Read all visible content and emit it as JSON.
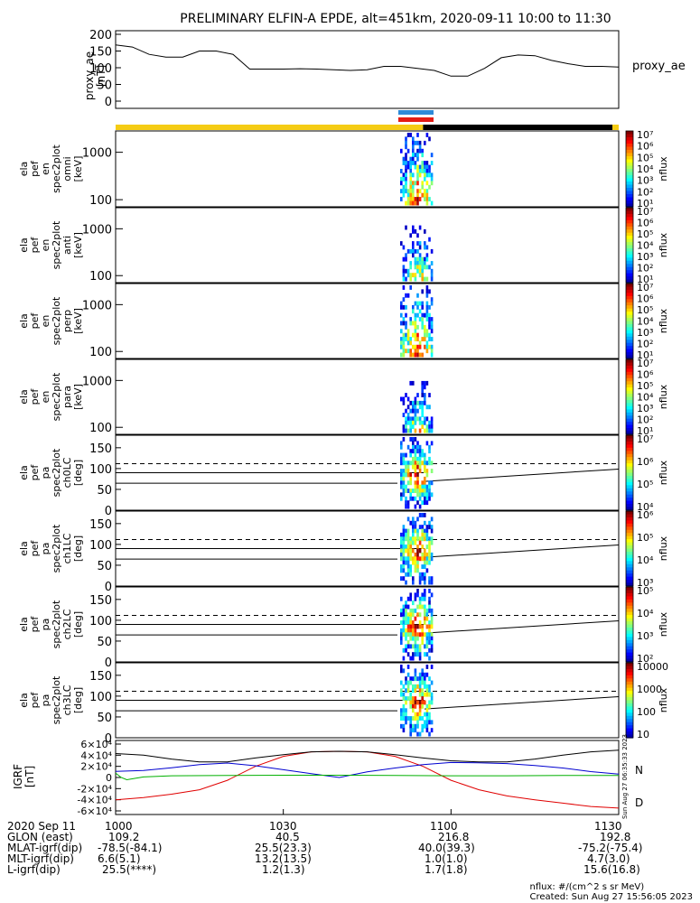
{
  "title": "PRELIMINARY ELFIN-A EPDE, alt=451km, 2020-09-11 10:00 to 11:30",
  "colors": {
    "science_bar": "#f5cc14",
    "night_bar": "#000000",
    "marker_blue": "#2e8ad8",
    "marker_red": "#e41b13",
    "trace_red": "#e00000",
    "trace_blue": "#0000d0",
    "trace_green": "#00b000",
    "trace_black": "#000000"
  },
  "x_axis": {
    "tick_labels": [
      "1000",
      "1030",
      "1100",
      "1130"
    ]
  },
  "chart_data": [
    {
      "type": "line",
      "panel": "proxy_ae",
      "ylabel": [
        "proxy_ae",
        "[nT]"
      ],
      "legend": "proxy_ae",
      "yticks": [
        "0",
        "50",
        "100",
        "150",
        "200"
      ],
      "ylim": [
        0,
        200
      ],
      "series": [
        {
          "x": [
            0,
            3,
            6,
            9,
            12,
            15,
            18,
            21,
            24,
            27,
            30,
            33,
            36,
            39,
            42,
            45,
            48,
            51,
            54,
            57,
            60,
            63,
            66,
            69,
            72,
            75,
            78,
            81,
            84,
            87,
            90
          ],
          "values": [
            168,
            162,
            140,
            132,
            132,
            150,
            150,
            140,
            96,
            96,
            96,
            97,
            96,
            94,
            92,
            94,
            104,
            104,
            98,
            92,
            75,
            75,
            98,
            130,
            138,
            136,
            122,
            112,
            104,
            104,
            102
          ]
        }
      ]
    },
    {
      "type": "heatmap",
      "panel": "omni",
      "ylabel": [
        "ela",
        "pef",
        "en",
        "spec2plot",
        "omni",
        "[keV]"
      ],
      "yticks": [
        "100",
        "1000"
      ],
      "y_scale": "log",
      "colorbar": {
        "label": "nflux",
        "ticks": [
          "10¹",
          "10²",
          "10³",
          "10⁴",
          "10⁵",
          "10⁶",
          "10⁷"
        ]
      }
    },
    {
      "type": "heatmap",
      "panel": "anti",
      "ylabel": [
        "ela",
        "pef",
        "en",
        "spec2plot",
        "anti",
        "[keV]"
      ],
      "yticks": [
        "100",
        "1000"
      ],
      "y_scale": "log",
      "colorbar": {
        "label": "nflux",
        "ticks": [
          "10¹",
          "10²",
          "10³",
          "10⁴",
          "10⁵",
          "10⁶",
          "10⁷"
        ]
      }
    },
    {
      "type": "heatmap",
      "panel": "perp",
      "ylabel": [
        "ela",
        "pef",
        "en",
        "spec2plot",
        "perp",
        "[keV]"
      ],
      "yticks": [
        "100",
        "1000"
      ],
      "y_scale": "log",
      "colorbar": {
        "label": "nflux",
        "ticks": [
          "10¹",
          "10²",
          "10³",
          "10⁴",
          "10⁵",
          "10⁶",
          "10⁷"
        ]
      }
    },
    {
      "type": "heatmap",
      "panel": "para",
      "ylabel": [
        "ela",
        "pef",
        "en",
        "spec2plot",
        "para",
        "[keV]"
      ],
      "yticks": [
        "100",
        "1000"
      ],
      "y_scale": "log",
      "colorbar": {
        "label": "nflux",
        "ticks": [
          "10¹",
          "10²",
          "10³",
          "10⁴",
          "10⁵",
          "10⁶",
          "10⁷"
        ]
      }
    },
    {
      "type": "heatmap",
      "panel": "ch0LC",
      "ylabel": [
        "ela",
        "pef",
        "pa",
        "spec2plot",
        "ch0LC",
        "[deg]"
      ],
      "yticks": [
        "0",
        "50",
        "100",
        "150"
      ],
      "ylim": [
        0,
        180
      ],
      "colorbar": {
        "label": "nflux",
        "ticks": [
          "10⁴",
          "10⁵",
          "10⁶",
          "10⁷"
        ]
      }
    },
    {
      "type": "heatmap",
      "panel": "ch1LC",
      "ylabel": [
        "ela",
        "pef",
        "pa",
        "spec2plot",
        "ch1LC",
        "[deg]"
      ],
      "yticks": [
        "0",
        "50",
        "100",
        "150"
      ],
      "ylim": [
        0,
        180
      ],
      "colorbar": {
        "label": "nflux",
        "ticks": [
          "10³",
          "10⁴",
          "10⁵",
          "10⁶"
        ]
      }
    },
    {
      "type": "heatmap",
      "panel": "ch2LC",
      "ylabel": [
        "ela",
        "pef",
        "pa",
        "spec2plot",
        "ch2LC",
        "[deg]"
      ],
      "yticks": [
        "0",
        "50",
        "100",
        "150"
      ],
      "ylim": [
        0,
        180
      ],
      "colorbar": {
        "label": "nflux",
        "ticks": [
          "10²",
          "10³",
          "10⁴",
          "10⁵"
        ]
      }
    },
    {
      "type": "heatmap",
      "panel": "ch3LC",
      "ylabel": [
        "ela",
        "pef",
        "pa",
        "spec2plot",
        "ch3LC",
        "[deg]"
      ],
      "yticks": [
        "0",
        "50",
        "100",
        "150"
      ],
      "ylim": [
        0,
        180
      ],
      "colorbar": {
        "label": "nflux",
        "ticks": [
          "10",
          "100",
          "1000",
          "10000"
        ]
      }
    },
    {
      "type": "line",
      "panel": "igrf",
      "ylabel": [
        "IGRF",
        "[nT]"
      ],
      "yticks": [
        "-6×10⁴",
        "-4×10⁴",
        "-2×10⁴",
        "0",
        "2×10⁴",
        "4×10⁴",
        "6×10⁴"
      ],
      "ylim": [
        -60000,
        60000
      ],
      "side_label": "Sun Aug 27 06:35:33 2023",
      "series": [
        {
          "name": "D",
          "x": [
            0,
            5,
            10,
            15,
            20,
            25,
            30,
            35,
            40,
            45,
            50,
            55,
            60,
            65,
            70,
            75,
            80,
            85,
            90
          ],
          "values": [
            -40000,
            -36000,
            -30000,
            -22000,
            -5000,
            20000,
            38000,
            46000,
            47000,
            46000,
            38000,
            20000,
            -5000,
            -22000,
            -33000,
            -40000,
            -46000,
            -52000,
            -55000
          ]
        },
        {
          "name": "N",
          "x": [
            0,
            5,
            10,
            15,
            20,
            25,
            30,
            35,
            40,
            45,
            50,
            55,
            60,
            65,
            70,
            75,
            80,
            85,
            90
          ],
          "values": [
            11000,
            12500,
            17500,
            23000,
            26000,
            21000,
            14000,
            7000,
            0,
            10000,
            17000,
            23000,
            27000,
            26500,
            25000,
            21500,
            17000,
            10500,
            6000
          ]
        },
        {
          "name": "",
          "x": [
            0,
            1,
            2,
            5,
            10,
            20,
            30,
            40,
            50,
            60,
            70,
            80,
            90
          ],
          "values": [
            8000,
            0,
            -4000,
            1000,
            3000,
            3500,
            4000,
            4000,
            3500,
            3000,
            3000,
            3500,
            3500
          ]
        },
        {
          "name": "",
          "x": [
            0,
            5,
            10,
            15,
            20,
            25,
            30,
            35,
            40,
            45,
            50,
            55,
            60,
            65,
            70,
            75,
            80,
            85,
            90
          ],
          "values": [
            43000,
            40000,
            33000,
            28000,
            28000,
            35000,
            41000,
            46000,
            47000,
            46000,
            41000,
            35000,
            30000,
            28000,
            28000,
            33000,
            40000,
            46000,
            49000
          ]
        }
      ]
    }
  ],
  "footer": {
    "rows": [
      [
        "2020 Sep 11",
        "1000",
        "1030",
        "1100",
        "1130"
      ],
      [
        "GLON (east)",
        "109.2",
        "40.5",
        "216.8",
        "192.8"
      ],
      [
        "MLAT-igrf(dip)",
        "-78.5(-84.1)",
        "25.5(23.3)",
        "40.0(39.3)",
        "-75.2(-75.4)"
      ],
      [
        "MLT-igrf(dip)",
        "6.6(5.1)",
        "13.2(13.5)",
        "1.0(1.0)",
        "4.7(3.0)"
      ],
      [
        "L-igrf(dip)",
        "25.5(****)",
        "1.2(1.3)",
        "1.7(1.8)",
        "15.6(16.8)"
      ]
    ],
    "units_note": "nflux: #/(cm^2 s sr MeV)",
    "created": "Created: Sun Aug 27 15:56:05 2023"
  }
}
